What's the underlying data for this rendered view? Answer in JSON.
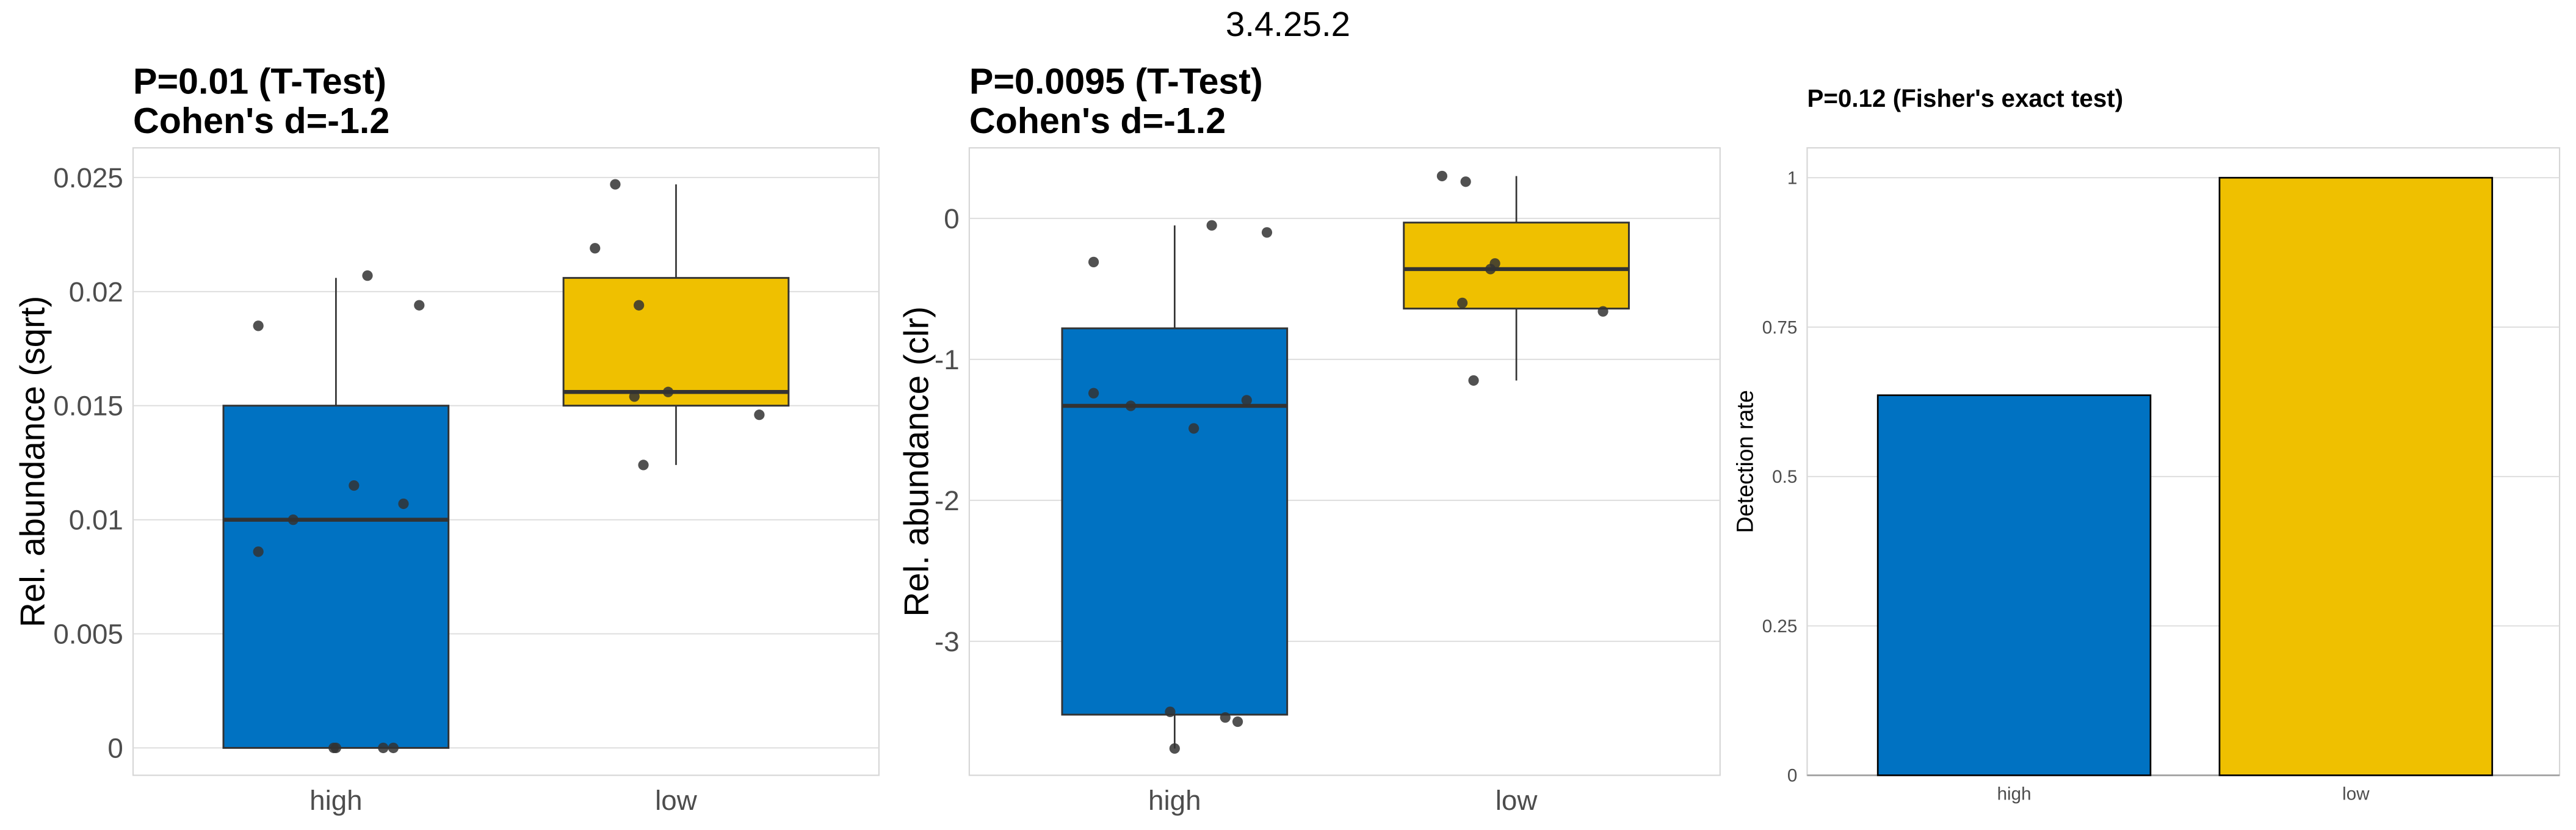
{
  "suptitle": "3.4.25.2",
  "colors": {
    "high": "#0072C2",
    "low": "#EFC000",
    "outline": "#333333",
    "point": "#333333"
  },
  "chart_data": [
    {
      "type": "box",
      "title_line1": "P=0.01 (T-Test)",
      "title_line2": "Cohen's d=-1.2",
      "ylabel": "Rel. abundance (sqrt)",
      "categories": [
        "high",
        "low"
      ],
      "ylim": [
        -0.0012,
        0.0263
      ],
      "yticks": [
        0,
        0.005,
        0.01,
        0.015,
        0.02,
        0.025
      ],
      "ytick_labels": [
        "0",
        "0.005",
        "0.01",
        "0.015",
        "0.02",
        "0.025"
      ],
      "boxes": [
        {
          "q1": 0,
          "median": 0.01,
          "q3": 0.015,
          "whisker_low": 0,
          "whisker_high": 0.0206
        },
        {
          "q1": 0.015,
          "median": 0.0156,
          "q3": 0.0206,
          "whisker_low": 0.0124,
          "whisker_high": 0.0247
        }
      ],
      "points": [
        [
          0.0185,
          0.0207,
          0.0194,
          0.0115,
          0.0107,
          0.01,
          0.0086,
          0,
          0,
          0,
          0
        ],
        [
          0.0247,
          0.0219,
          0.0194,
          0.0156,
          0.0154,
          0.0146,
          0.0124
        ]
      ]
    },
    {
      "type": "box",
      "title_line1": "P=0.0095 (T-Test)",
      "title_line2": "Cohen's d=-1.2",
      "ylabel": "Rel. abundance (clr)",
      "categories": [
        "high",
        "low"
      ],
      "ylim": [
        -3.95,
        0.5
      ],
      "yticks": [
        0,
        -1,
        -2,
        -3
      ],
      "ytick_labels": [
        "0",
        "-1",
        "-2",
        "-3"
      ],
      "boxes": [
        {
          "q1": -3.52,
          "median": -1.33,
          "q3": -0.78,
          "whisker_low": -3.76,
          "whisker_high": -0.05
        },
        {
          "q1": -0.64,
          "median": -0.36,
          "q3": -0.03,
          "whisker_low": -1.15,
          "whisker_high": 0.3
        }
      ],
      "points": [
        [
          -0.05,
          -0.1,
          -0.31,
          -1.24,
          -1.33,
          -1.29,
          -1.49,
          -3.5,
          -3.57,
          -3.54,
          -3.76
        ],
        [
          0.3,
          0.26,
          -0.32,
          -0.36,
          -0.6,
          -0.66,
          -1.15
        ]
      ]
    },
    {
      "type": "bar",
      "title": "P=0.12 (Fisher's exact test)",
      "ylabel": "Detection rate",
      "categories": [
        "high",
        "low"
      ],
      "values": [
        0.636,
        1.0
      ],
      "ylim": [
        0,
        1.05
      ],
      "yticks": [
        0,
        0.25,
        0.5,
        0.75,
        1
      ],
      "ytick_labels": [
        "0",
        "0.25",
        "0.5",
        "0.75",
        "1"
      ]
    }
  ]
}
